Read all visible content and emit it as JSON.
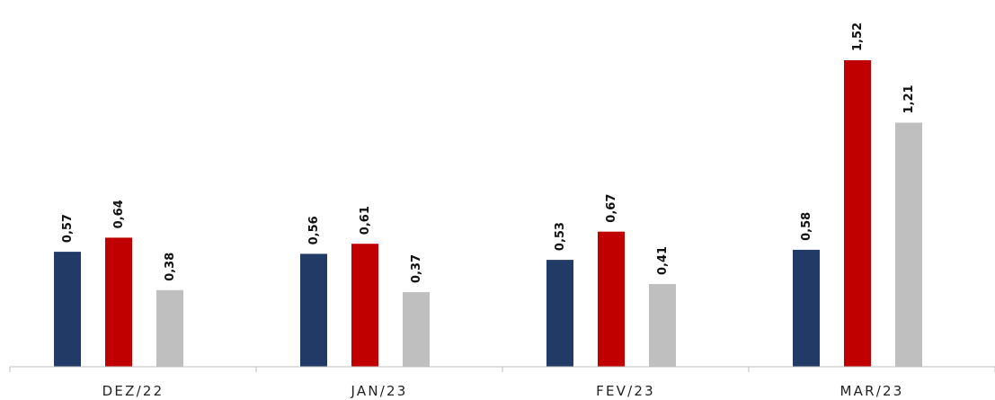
{
  "chart_data": {
    "type": "bar",
    "categories": [
      "DEZ/22",
      "JAN/23",
      "FEV/23",
      "MAR/23"
    ],
    "series": [
      {
        "color": "#213a66",
        "values": [
          0.57,
          0.56,
          0.53,
          0.58
        ],
        "labels": [
          "0,57",
          "0,56",
          "0,53",
          "0,58"
        ]
      },
      {
        "color": "#c00000",
        "values": [
          0.64,
          0.61,
          0.67,
          1.52
        ],
        "labels": [
          "0,64",
          "0,61",
          "0,67",
          "1,52"
        ]
      },
      {
        "color": "#bfbfbf",
        "values": [
          0.38,
          0.37,
          0.41,
          1.21
        ],
        "labels": [
          "0,38",
          "0,37",
          "0,41",
          "1,21"
        ]
      }
    ],
    "title": "",
    "xlabel": "",
    "ylabel": "",
    "ylim": [
      0,
      1.52
    ],
    "grid": false,
    "legend": "none",
    "data_labels": "rotated-vertical"
  }
}
